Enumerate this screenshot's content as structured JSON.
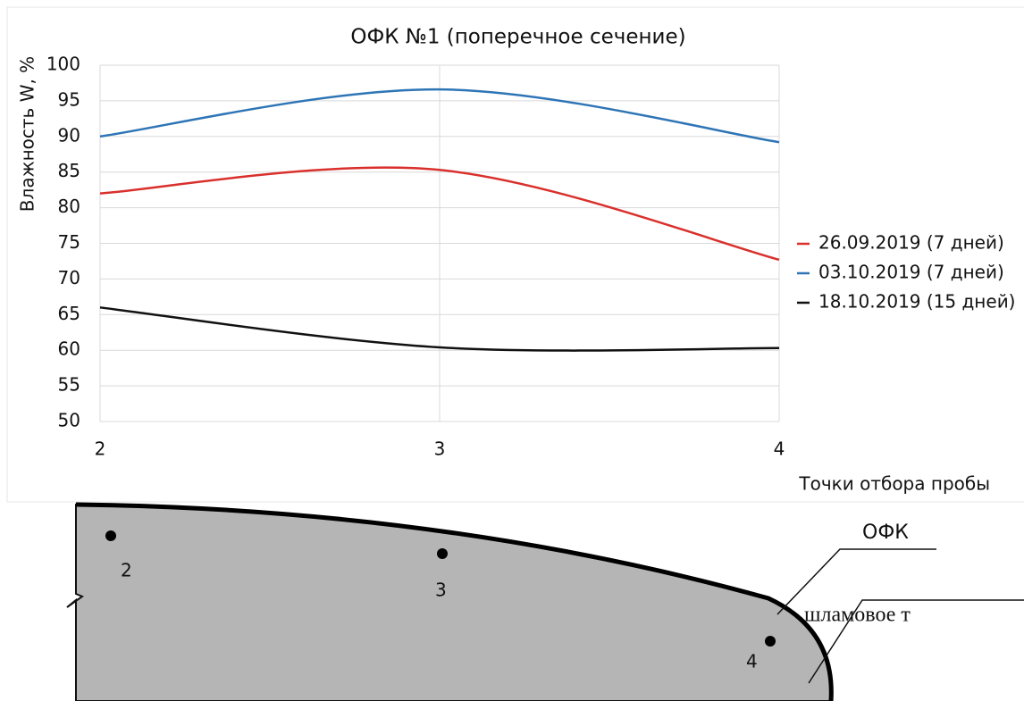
{
  "chart_data": {
    "type": "line",
    "title": "ОФК №1 (поперечное сечение)",
    "y_label": "Влажность W, %",
    "x_label": "Точки отбора пробы",
    "x": [
      2,
      3,
      4
    ],
    "series": [
      {
        "name": "26.09.2019 (7 дней)",
        "color": "#d9302c",
        "values": [
          82,
          85.3,
          72.7
        ]
      },
      {
        "name": "03.10.2019 (7 дней)",
        "color": "#2e75b6",
        "values": [
          90,
          96.6,
          89.2
        ]
      },
      {
        "name": "18.10.2019 (15 дней)",
        "color": "#111111",
        "values": [
          66,
          60.4,
          60.3
        ]
      }
    ],
    "xlim": [
      2,
      4
    ],
    "xticks": [
      2,
      3,
      4
    ],
    "ylim": [
      50,
      100
    ],
    "yticks": [
      50,
      55,
      60,
      65,
      70,
      75,
      80,
      85,
      90,
      95,
      100
    ],
    "grid": true,
    "legend": "right",
    "smooth": true
  },
  "diagram": {
    "points": [
      {
        "label": "2"
      },
      {
        "label": "3"
      },
      {
        "label": "4"
      }
    ],
    "callouts": [
      "ОФК",
      "шламовое т"
    ]
  }
}
